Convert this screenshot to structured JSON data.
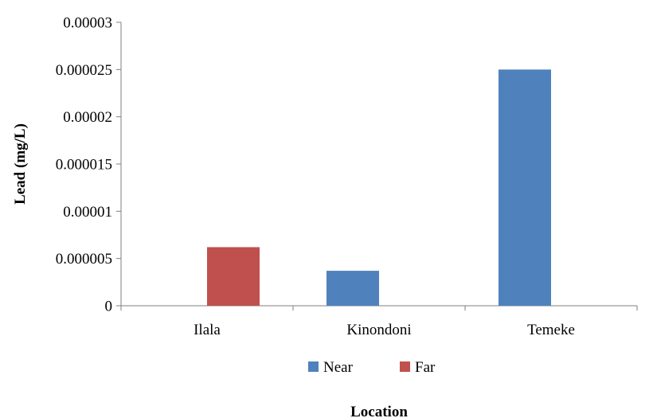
{
  "chart_data": {
    "type": "bar",
    "categories": [
      "Ilala",
      "Kinondoni",
      "Temeke"
    ],
    "series": [
      {
        "name": "Near",
        "values": [
          0,
          3.7e-06,
          2.5e-05
        ],
        "color": "#4f81bd"
      },
      {
        "name": "Far",
        "values": [
          6.2e-06,
          0,
          0
        ],
        "color": "#c0504d"
      }
    ],
    "yticks": [
      "0",
      "0.000005",
      "0.00001",
      "0.000015",
      "0.00002",
      "0.000025",
      "0.00003"
    ],
    "ylim": [
      0,
      3e-05
    ],
    "ylabel": "Lead (mg/L)",
    "xlabel": "Location",
    "legend_position": "bottom",
    "grid": false
  }
}
